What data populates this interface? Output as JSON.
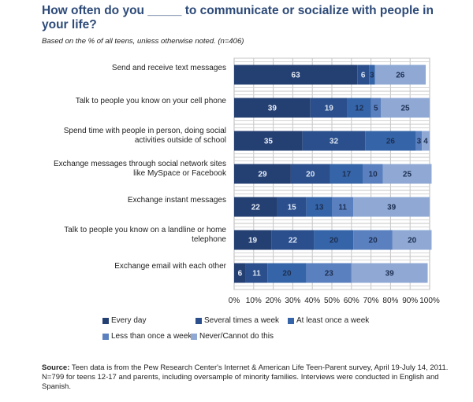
{
  "title": "How often do you _____ to communicate or socialize with people in your life?",
  "subtitle": "Based on the % of all teens, unless otherwise noted.  (n=406)",
  "source_label": "Source:",
  "source_text": " Teen data is from the Pew Research Center's Internet & American Life Teen-Parent survey, April 19-July 14, 2011. N=799 for teens 12-17 and parents, including oversample of minority families. Interviews were conducted in English and Spanish.",
  "colors": {
    "Every day": "#243f72",
    "Several times a week": "#2b4f8c",
    "At least once a week": "#3565a8",
    "Less than once a week": "#5b80bf",
    "Never/Cannot do this": "#8fa9d4"
  },
  "chart_data": {
    "type": "bar",
    "orientation": "horizontal",
    "stacked": true,
    "title": "How often do you _____ to communicate or socialize with people in your life?",
    "subtitle": "Based on the % of all teens, unless otherwise noted.  (n=406)",
    "xlabel": "",
    "ylabel": "",
    "xlim": [
      0,
      100
    ],
    "grid": true,
    "legend_position": "bottom",
    "x_ticks": [
      "0%",
      "10%",
      "20%",
      "30%",
      "40%",
      "50%",
      "60%",
      "70%",
      "80%",
      "90%",
      "100%"
    ],
    "categories": [
      [
        "Send and receive text messages"
      ],
      [
        "Talk to people you know on your cell phone"
      ],
      [
        "Spend time with people in person, doing social",
        "activities outside of school"
      ],
      [
        "Exchange messages through social network sites",
        "like MySpace or Facebook"
      ],
      [
        "Exchange instant messages"
      ],
      [
        "Talk to people you know on a landline or home",
        "telephone"
      ],
      [
        "Exchange email with each other"
      ]
    ],
    "series": [
      {
        "name": "Every day",
        "values": [
          63,
          39,
          35,
          29,
          22,
          19,
          6
        ]
      },
      {
        "name": "Several times a week",
        "values": [
          6,
          19,
          32,
          20,
          15,
          22,
          11
        ]
      },
      {
        "name": "At least once a week",
        "values": [
          3,
          12,
          26,
          17,
          13,
          20,
          20
        ]
      },
      {
        "name": "Less than once a week",
        "values": [
          null,
          5,
          3,
          10,
          11,
          20,
          23
        ]
      },
      {
        "name": "Never/Cannot do this",
        "values": [
          26,
          25,
          4,
          25,
          39,
          20,
          39
        ]
      }
    ]
  }
}
